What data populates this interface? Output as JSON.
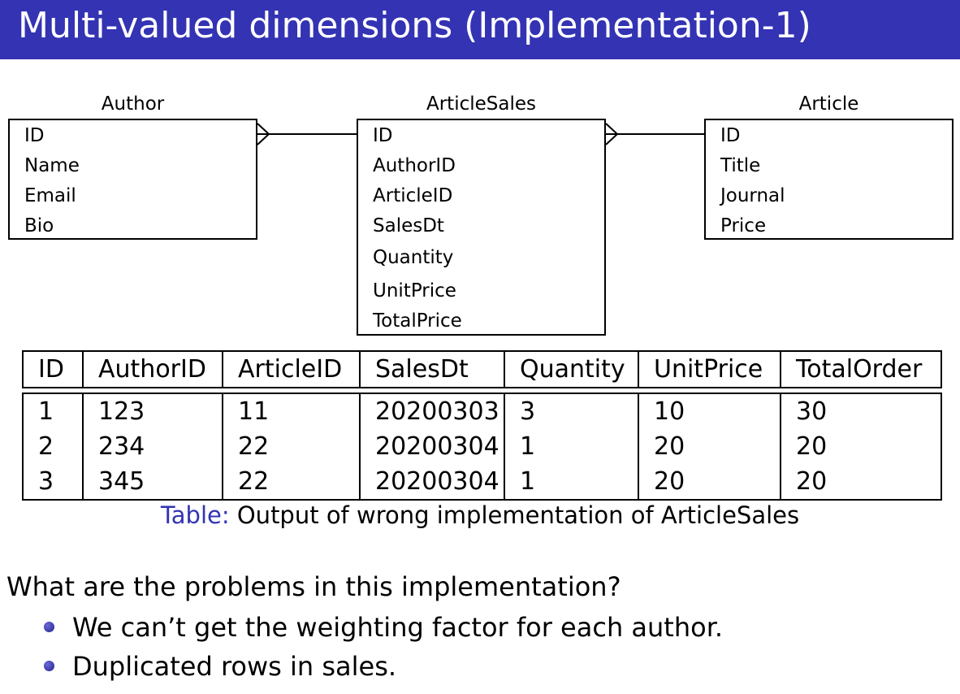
{
  "slide": {
    "title": "Multi-valued dimensions (Implementation-1)"
  },
  "diagram": {
    "entities": [
      {
        "name": "Author",
        "attributes": [
          "ID",
          "Name",
          "Email",
          "Bio"
        ]
      },
      {
        "name": "ArticleSales",
        "attributes": [
          "ID",
          "AuthorID",
          "ArticleID",
          "SalesDt",
          "Quantity",
          "UnitPrice",
          "TotalPrice"
        ]
      },
      {
        "name": "Article",
        "attributes": [
          "ID",
          "Title",
          "Journal",
          "Price"
        ]
      }
    ],
    "relationships": [
      {
        "from": "Author",
        "to": "ArticleSales",
        "notation": "crow's foot"
      },
      {
        "from": "ArticleSales",
        "to": "Article",
        "notation": "crow's foot"
      }
    ]
  },
  "table": {
    "headers": [
      "ID",
      "AuthorID",
      "ArticleID",
      "SalesDt",
      "Quantity",
      "UnitPrice",
      "TotalOrder"
    ],
    "rows": [
      [
        "1",
        "123",
        "11",
        "20200303",
        "3",
        "10",
        "30"
      ],
      [
        "2",
        "234",
        "22",
        "20200304",
        "1",
        "20",
        "20"
      ],
      [
        "3",
        "345",
        "22",
        "20200304",
        "1",
        "20",
        "20"
      ]
    ],
    "caption_label": "Table:",
    "caption_text": "Output of wrong implementation of ArticleSales"
  },
  "discussion": {
    "question": "What are the problems in this implementation?",
    "bullets": [
      "We can’t get the weighting factor for each author.",
      "Duplicated rows in sales."
    ]
  },
  "colors": {
    "title_bar": "#3333b3",
    "accent": "#3333b3"
  }
}
